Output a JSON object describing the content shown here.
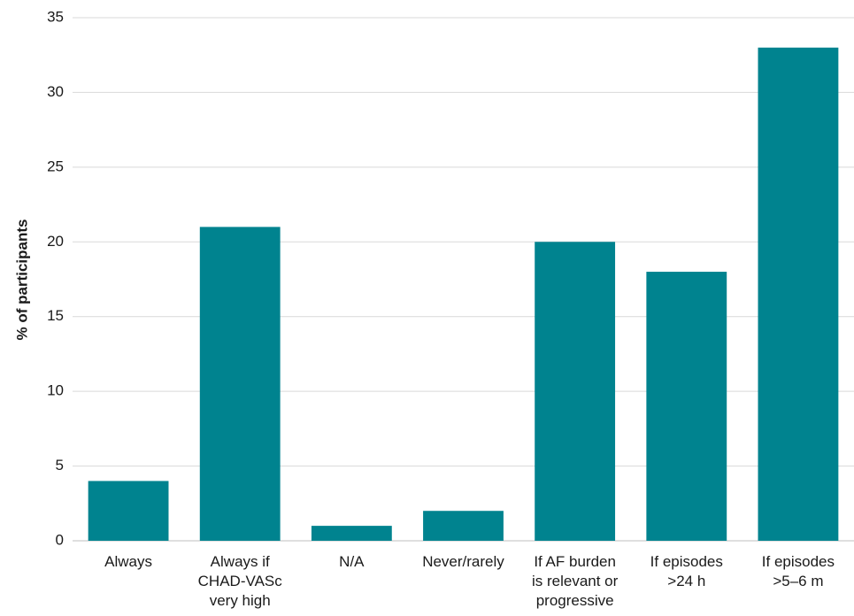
{
  "chart_data": {
    "type": "bar",
    "title": "",
    "xlabel": "",
    "ylabel": "% of participants",
    "ylim": [
      0,
      35
    ],
    "yticks": [
      0,
      5,
      10,
      15,
      20,
      25,
      30,
      35
    ],
    "grid": true,
    "categories": [
      [
        "Always"
      ],
      [
        "Always if",
        "CHAD-VASc",
        "very high"
      ],
      [
        "N/A"
      ],
      [
        "Never/rarely"
      ],
      [
        "If AF burden",
        "is relevant or",
        "progressive"
      ],
      [
        "If episodes",
        ">24 h"
      ],
      [
        "If episodes",
        ">5–6 m"
      ]
    ],
    "values": [
      4,
      21,
      1,
      2,
      20,
      18,
      33
    ],
    "bar_color": "#00838f"
  }
}
